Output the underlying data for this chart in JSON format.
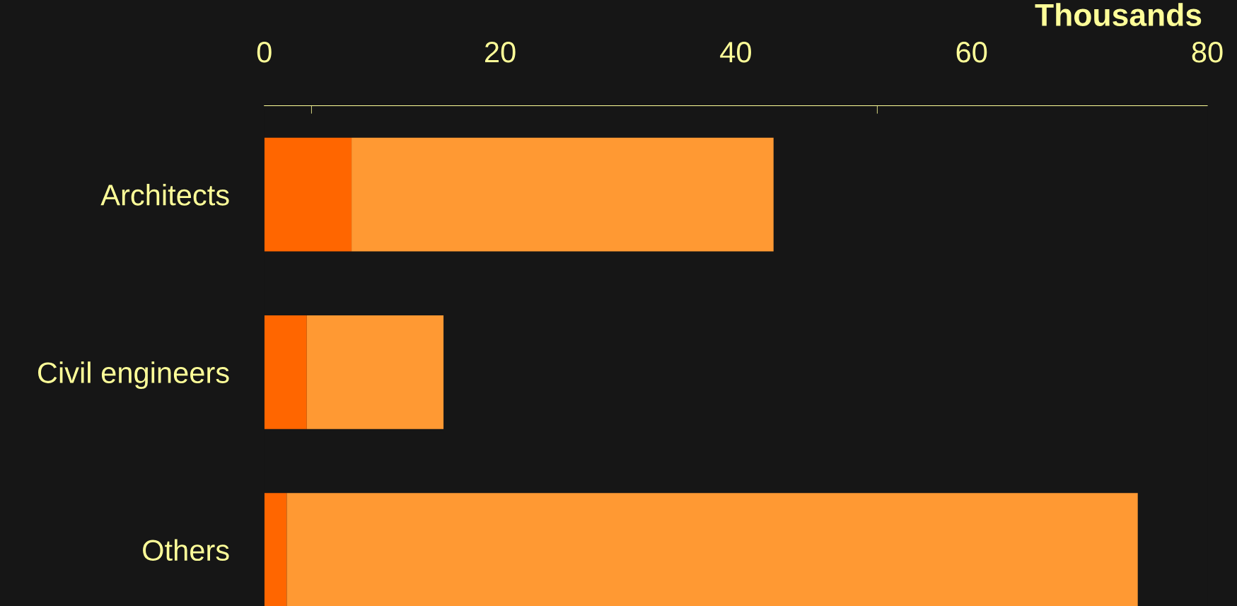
{
  "chart_data": {
    "type": "bar",
    "orientation": "horizontal",
    "stacked": true,
    "xlabel": "Thousands",
    "categories": [
      "Architects",
      "Civil engineers",
      "Others"
    ],
    "series": [
      {
        "color": "#ff6600",
        "values": [
          7.4,
          3.6,
          1.9
        ]
      },
      {
        "color": "#ff9933",
        "values": [
          35.8,
          11.6,
          72.2
        ]
      }
    ],
    "xlim": [
      0,
      80
    ],
    "xticks": [
      0,
      20,
      40,
      60,
      80,
      {
        "value": 4,
        "label": null
      },
      {
        "value": 52,
        "label": null
      }
    ],
    "grid": false,
    "legend": false
  }
}
